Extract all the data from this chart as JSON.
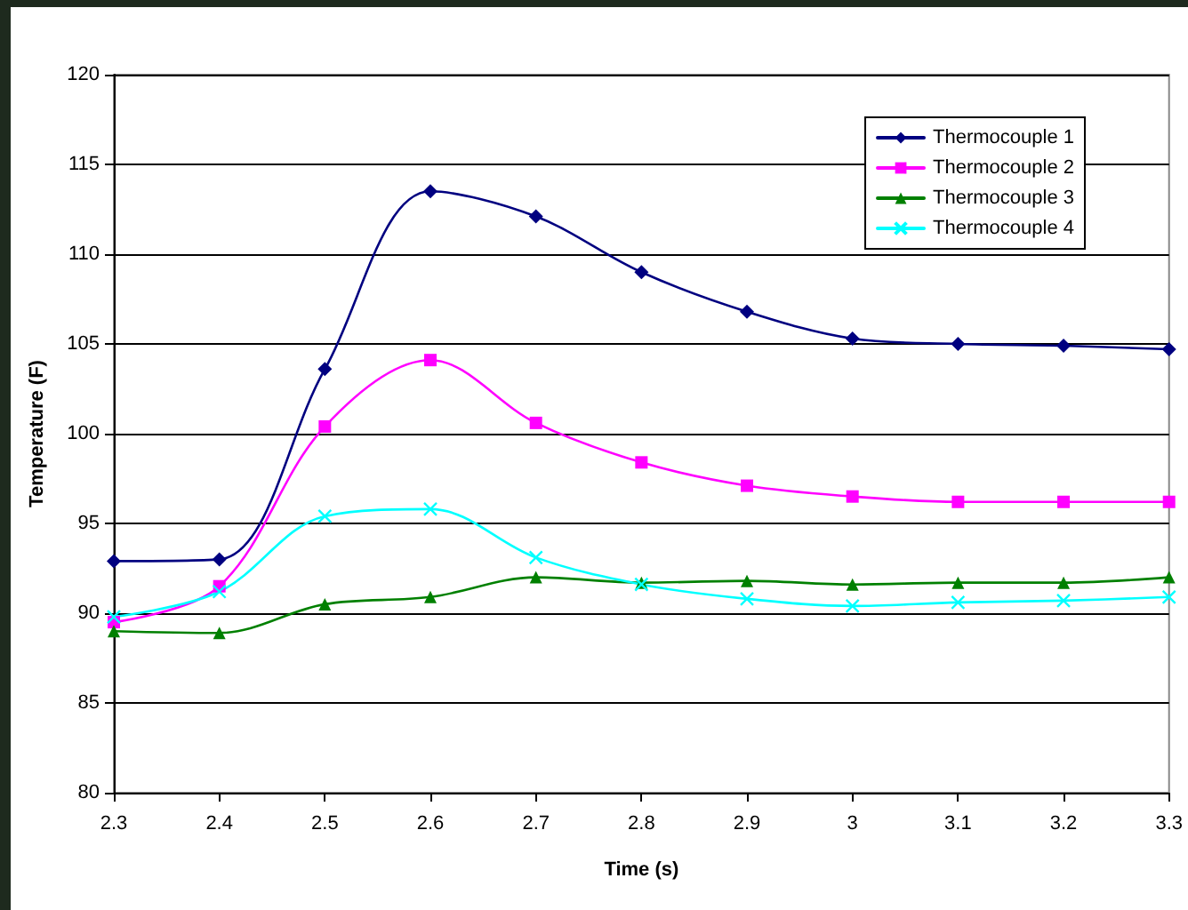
{
  "chart_data": {
    "type": "line",
    "xlabel": "Time (s)",
    "ylabel": "Temperature (F)",
    "x": [
      2.3,
      2.4,
      2.5,
      2.6,
      2.7,
      2.8,
      2.9,
      3,
      3.1,
      3.2,
      3.3
    ],
    "series": [
      {
        "name": "Thermocouple 1",
        "color": "#000080",
        "marker": "diamond",
        "values": [
          92.9,
          93.0,
          103.6,
          113.5,
          112.1,
          109.0,
          106.8,
          105.3,
          105.0,
          104.9,
          104.7
        ]
      },
      {
        "name": "Thermocouple 2",
        "color": "#ff00ff",
        "marker": "square",
        "values": [
          89.5,
          91.5,
          100.4,
          104.1,
          100.6,
          98.4,
          97.1,
          96.5,
          96.2,
          96.2,
          96.2
        ]
      },
      {
        "name": "Thermocouple 3",
        "color": "#008000",
        "marker": "triangle",
        "values": [
          89.0,
          88.9,
          90.5,
          90.9,
          92.0,
          91.7,
          91.8,
          91.6,
          91.7,
          91.7,
          92.0
        ]
      },
      {
        "name": "Thermocouple 4",
        "color": "#00ffff",
        "marker": "cross",
        "values": [
          89.8,
          91.2,
          95.4,
          95.8,
          93.1,
          91.6,
          90.8,
          90.4,
          90.6,
          90.7,
          90.9
        ]
      }
    ],
    "xlim": [
      2.3,
      3.3
    ],
    "xticks": [
      2.3,
      2.4,
      2.5,
      2.6,
      2.7,
      2.8,
      2.9,
      3,
      3.1,
      3.2,
      3.3
    ],
    "ylim": [
      80,
      120
    ],
    "yticks": [
      80,
      85,
      90,
      95,
      100,
      105,
      110,
      115,
      120
    ],
    "grid": "y",
    "legend": "top right",
    "line_style": "solid"
  }
}
